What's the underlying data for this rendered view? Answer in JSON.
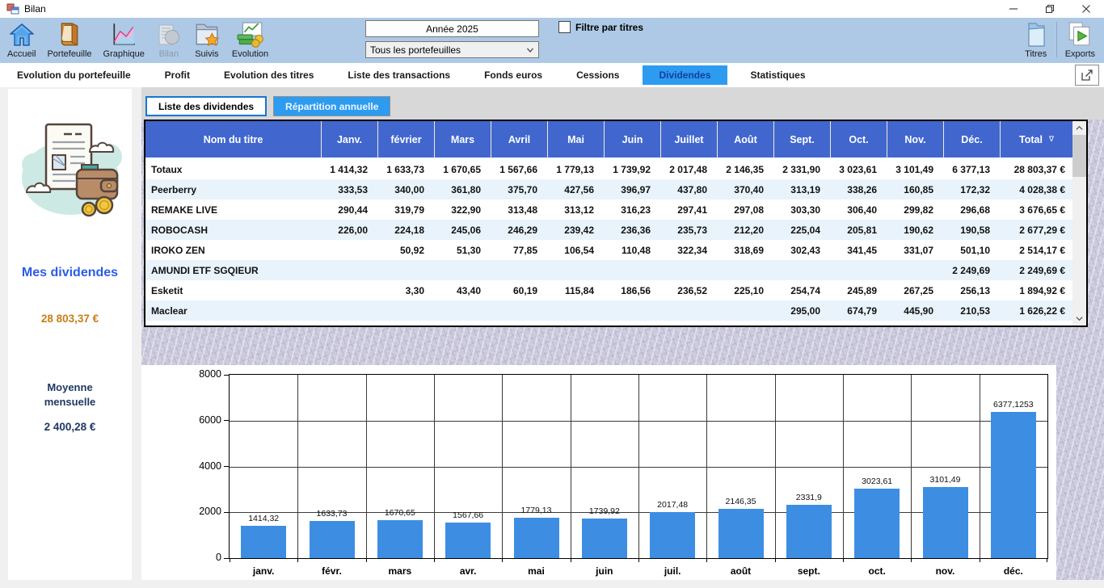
{
  "window": {
    "title": "Bilan"
  },
  "toolbar": {
    "left_buttons": [
      {
        "label": "Accueil",
        "icon": "home-icon",
        "disabled": false
      },
      {
        "label": "Portefeuille",
        "icon": "wallet-book-icon",
        "disabled": false
      },
      {
        "label": "Graphique",
        "icon": "line-chart-icon",
        "disabled": false
      },
      {
        "label": "Bilan",
        "icon": "report-icon",
        "disabled": true
      },
      {
        "label": "Suivis",
        "icon": "folder-star-icon",
        "disabled": false
      },
      {
        "label": "Evolution",
        "icon": "money-chart-icon",
        "disabled": false
      }
    ],
    "year_value": "Année 2025",
    "portfolio_value": "Tous les portefeuilles",
    "filter_label": "Filtre par titres",
    "filter_checked": false,
    "right_buttons": [
      {
        "label": "Titres",
        "icon": "folder-icon"
      },
      {
        "label": "Exports",
        "icon": "export-icon"
      }
    ]
  },
  "tabs": {
    "items": [
      "Evolution du portefeuille",
      "Profit",
      "Evolution des titres",
      "Liste des transactions",
      "Fonds euros",
      "Cessions",
      "Dividendes",
      "Statistiques"
    ],
    "active": "Dividendes"
  },
  "subtabs": {
    "items": [
      "Liste des dividendes",
      "Répartition annuelle"
    ],
    "active": "Liste des dividendes"
  },
  "sidebar": {
    "title": "Mes dividendes",
    "total": "28 803,37 €",
    "average_label": "Moyenne mensuelle",
    "average_value": "2 400,28 €"
  },
  "table": {
    "columns": [
      "Nom du titre",
      "Janv.",
      "février",
      "Mars",
      "Avril",
      "Mai",
      "Juin",
      "Juillet",
      "Août",
      "Sept.",
      "Oct.",
      "Nov.",
      "Déc.",
      "Total"
    ],
    "sort_column": "Total",
    "sort_indicator": "∇",
    "rows": [
      {
        "name": "Totaux",
        "values": [
          "1 414,32",
          "1 633,73",
          "1 670,65",
          "1 567,66",
          "1 779,13",
          "1 739,92",
          "2 017,48",
          "2 146,35",
          "2 331,90",
          "3 023,61",
          "3 101,49",
          "6 377,13"
        ],
        "total": "28 803,37 €"
      },
      {
        "name": "Peerberry",
        "values": [
          "333,53",
          "340,00",
          "361,80",
          "375,70",
          "427,56",
          "396,97",
          "437,80",
          "370,40",
          "313,19",
          "338,26",
          "160,85",
          "172,32"
        ],
        "total": "4 028,38 €"
      },
      {
        "name": "REMAKE LIVE",
        "values": [
          "290,44",
          "319,79",
          "322,90",
          "313,48",
          "313,12",
          "316,23",
          "297,41",
          "297,08",
          "303,30",
          "306,40",
          "299,82",
          "296,68"
        ],
        "total": "3 676,65 €"
      },
      {
        "name": "ROBOCASH",
        "values": [
          "226,00",
          "224,18",
          "245,06",
          "246,29",
          "239,42",
          "236,36",
          "235,73",
          "212,20",
          "225,04",
          "205,81",
          "190,62",
          "190,58"
        ],
        "total": "2 677,29 €"
      },
      {
        "name": "IROKO ZEN",
        "values": [
          "",
          "50,92",
          "51,30",
          "77,85",
          "106,54",
          "110,48",
          "322,34",
          "318,69",
          "302,43",
          "341,45",
          "331,07",
          "501,10"
        ],
        "total": "2 514,17 €"
      },
      {
        "name": "AMUNDI ETF SGQIEUR",
        "values": [
          "",
          "",
          "",
          "",
          "",
          "",
          "",
          "",
          "",
          "",
          "",
          "2 249,69"
        ],
        "total": "2 249,69 €"
      },
      {
        "name": "Esketit",
        "values": [
          "",
          "3,30",
          "43,40",
          "60,19",
          "115,84",
          "186,56",
          "236,52",
          "225,10",
          "254,74",
          "245,89",
          "267,25",
          "256,13"
        ],
        "total": "1 894,92 €"
      },
      {
        "name": "Maclear",
        "values": [
          "",
          "",
          "",
          "",
          "",
          "",
          "",
          "",
          "295,00",
          "674,79",
          "445,90",
          "210,53"
        ],
        "total": "1 626,22 €"
      }
    ]
  },
  "chart_data": {
    "type": "bar",
    "title": "",
    "xlabel": "",
    "ylabel": "",
    "categories": [
      "janv.",
      "févr.",
      "mars",
      "avr.",
      "mai",
      "juin",
      "juil.",
      "août",
      "sept.",
      "oct.",
      "nov.",
      "déc."
    ],
    "values": [
      1414.32,
      1633.73,
      1670.65,
      1567.66,
      1779.13,
      1739.92,
      2017.48,
      2146.35,
      2331.9,
      3023.61,
      3101.49,
      6377.1253
    ],
    "bar_labels": [
      "1414,32",
      "1633,73",
      "1670,65",
      "1567,66",
      "1779,13",
      "1739,92",
      "2017,48",
      "2146,35",
      "2331,9",
      "3023,61",
      "3101,49",
      "6377,1253"
    ],
    "ylim": [
      0,
      8000
    ],
    "yticks": [
      "0",
      "2000",
      "4000",
      "6000",
      "8000"
    ],
    "grid": true,
    "legend_position": "none",
    "bar_color": "#3d8ee2"
  },
  "colors": {
    "toolbar_bg": "#adc9e6",
    "table_header_blue": "#4167ce",
    "active_tab_blue": "#2d9bf0",
    "row_alt_blue": "#e8f3fb",
    "accent_orange": "#c87d18",
    "navy": "#203864",
    "title_blue": "#2b5ce6",
    "bar_blue": "#3d8ee2"
  }
}
